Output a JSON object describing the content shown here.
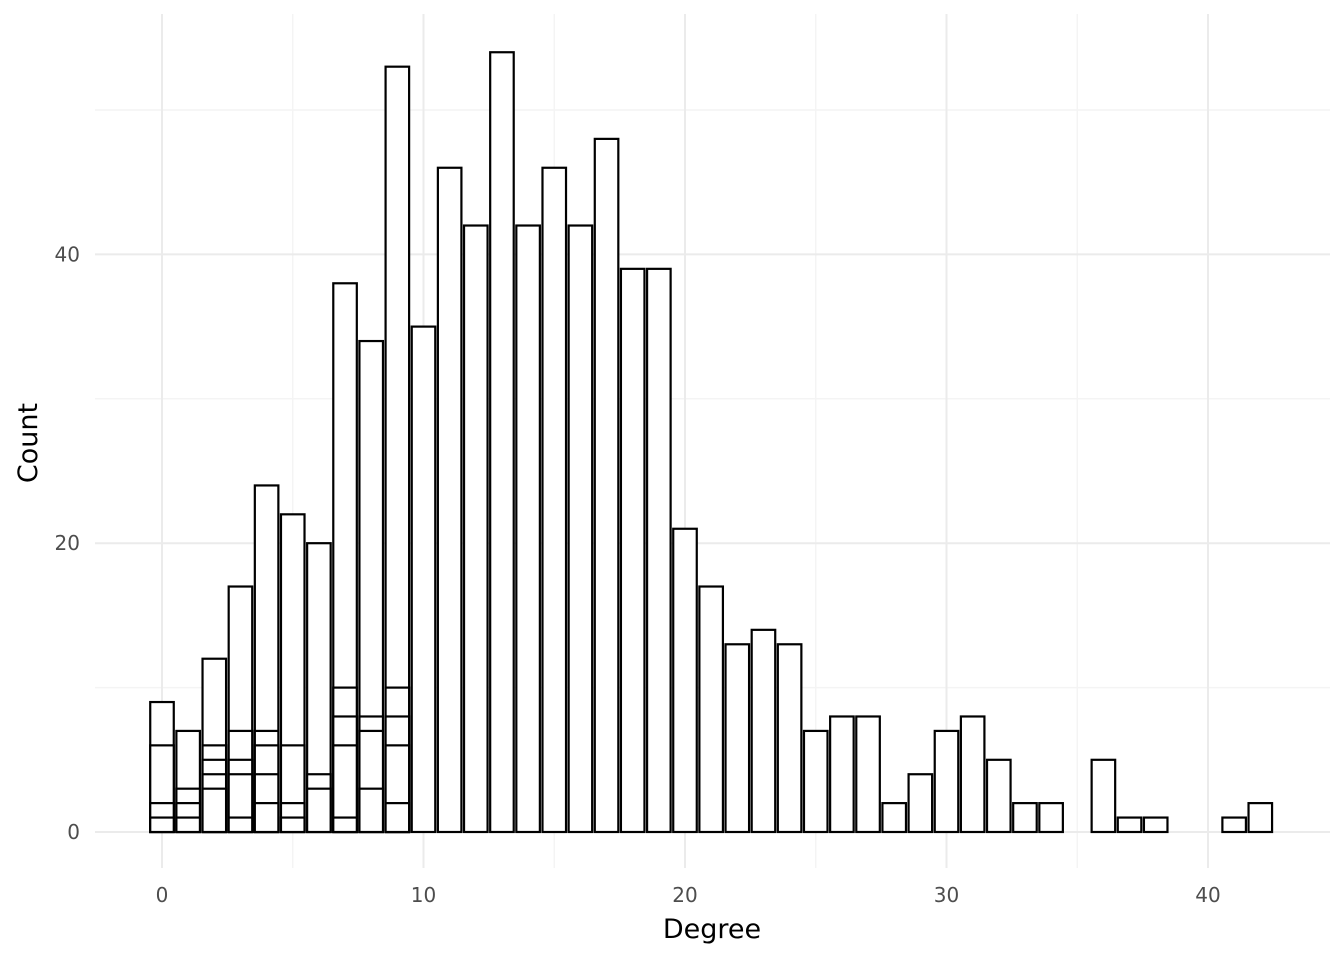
{
  "chart_data": {
    "type": "bar",
    "xlabel": "Degree",
    "ylabel": "Count",
    "xlim": [
      -2.5,
      44.5
    ],
    "ylim": [
      -2.5,
      56
    ],
    "x_ticks": [
      0,
      10,
      20,
      30,
      40
    ],
    "y_ticks": [
      0,
      20,
      40
    ],
    "grid": true,
    "bars": [
      {
        "x": 0,
        "count": 9,
        "segments": [
          1,
          2,
          6,
          9
        ]
      },
      {
        "x": 1,
        "count": 7,
        "segments": [
          1,
          2,
          3,
          7
        ]
      },
      {
        "x": 2,
        "count": 12,
        "segments": [
          3,
          4,
          5,
          6,
          12
        ]
      },
      {
        "x": 3,
        "count": 17,
        "segments": [
          1,
          4,
          5,
          7,
          17
        ]
      },
      {
        "x": 4,
        "count": 24,
        "segments": [
          2,
          4,
          6,
          7,
          24
        ]
      },
      {
        "x": 5,
        "count": 22,
        "segments": [
          1,
          2,
          6,
          22
        ]
      },
      {
        "x": 6,
        "count": 20,
        "segments": [
          3,
          4,
          20
        ]
      },
      {
        "x": 7,
        "count": 38,
        "segments": [
          1,
          6,
          8,
          10,
          38
        ]
      },
      {
        "x": 8,
        "count": 34,
        "segments": [
          3,
          7,
          8,
          34
        ]
      },
      {
        "x": 9,
        "count": 53,
        "segments": [
          2,
          6,
          8,
          10,
          53
        ]
      },
      {
        "x": 10,
        "count": 35,
        "segments": [
          35
        ]
      },
      {
        "x": 11,
        "count": 46,
        "segments": [
          46
        ]
      },
      {
        "x": 12,
        "count": 42,
        "segments": [
          42
        ]
      },
      {
        "x": 13,
        "count": 54,
        "segments": [
          54
        ]
      },
      {
        "x": 14,
        "count": 42,
        "segments": [
          42
        ]
      },
      {
        "x": 15,
        "count": 46,
        "segments": [
          46
        ]
      },
      {
        "x": 16,
        "count": 42,
        "segments": [
          42
        ]
      },
      {
        "x": 17,
        "count": 48,
        "segments": [
          48
        ]
      },
      {
        "x": 18,
        "count": 39,
        "segments": [
          39
        ]
      },
      {
        "x": 19,
        "count": 39,
        "segments": [
          39
        ]
      },
      {
        "x": 20,
        "count": 21,
        "segments": [
          21
        ]
      },
      {
        "x": 21,
        "count": 17,
        "segments": [
          17
        ]
      },
      {
        "x": 22,
        "count": 13,
        "segments": [
          13
        ]
      },
      {
        "x": 23,
        "count": 14,
        "segments": [
          14
        ]
      },
      {
        "x": 24,
        "count": 13,
        "segments": [
          13
        ]
      },
      {
        "x": 25,
        "count": 7,
        "segments": [
          7
        ]
      },
      {
        "x": 26,
        "count": 8,
        "segments": [
          8
        ]
      },
      {
        "x": 27,
        "count": 8,
        "segments": [
          8
        ]
      },
      {
        "x": 28,
        "count": 2,
        "segments": [
          2
        ]
      },
      {
        "x": 29,
        "count": 4,
        "segments": [
          4
        ]
      },
      {
        "x": 30,
        "count": 7,
        "segments": [
          7
        ]
      },
      {
        "x": 31,
        "count": 8,
        "segments": [
          8
        ]
      },
      {
        "x": 32,
        "count": 5,
        "segments": [
          5
        ]
      },
      {
        "x": 33,
        "count": 2,
        "segments": [
          2
        ]
      },
      {
        "x": 34,
        "count": 2,
        "segments": [
          2
        ]
      },
      {
        "x": 36,
        "count": 5,
        "segments": [
          5
        ]
      },
      {
        "x": 37,
        "count": 1,
        "segments": [
          1
        ]
      },
      {
        "x": 38,
        "count": 1,
        "segments": [
          1
        ]
      },
      {
        "x": 41,
        "count": 1,
        "segments": [
          1
        ]
      },
      {
        "x": 42,
        "count": 2,
        "segments": [
          2
        ]
      }
    ],
    "colors": {
      "bar_fill": "#ffffff",
      "bar_stroke": "#000000",
      "grid_major": "#ebebeb",
      "grid_minor": "#f4f4f4",
      "tick_text": "#4d4d4d"
    }
  }
}
